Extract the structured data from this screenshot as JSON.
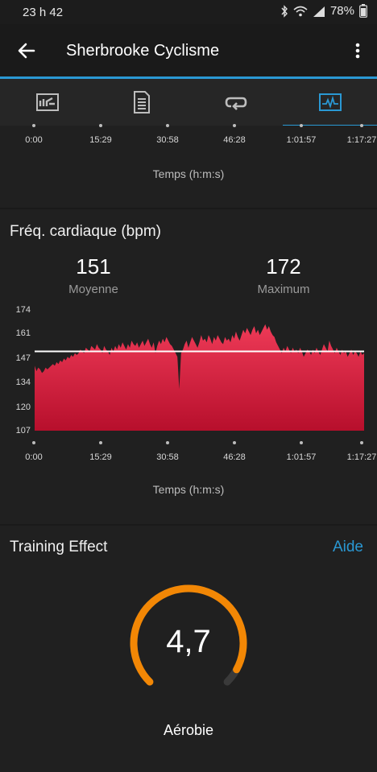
{
  "status_bar": {
    "time": "23 h 42",
    "battery": "78%"
  },
  "app_bar": {
    "title": "Sherbrooke Cyclisme"
  },
  "tabs": [
    {
      "name": "overview",
      "icon": "map-chart-icon",
      "active": false
    },
    {
      "name": "details",
      "icon": "document-list-icon",
      "active": false
    },
    {
      "name": "laps",
      "icon": "loop-icon",
      "active": false
    },
    {
      "name": "charts",
      "icon": "activity-chart-icon",
      "active": true
    }
  ],
  "top_card": {
    "time_ticks": [
      "0:00",
      "15:29",
      "30:58",
      "46:28",
      "1:01:57",
      "1:17:27"
    ],
    "xlabel": "Temps (h:m:s)"
  },
  "heart_rate": {
    "title": "Fréq. cardiaque (bpm)",
    "average_value": "151",
    "average_label": "Moyenne",
    "max_value": "172",
    "max_label": "Maximum",
    "xlabel": "Temps (h:m:s)"
  },
  "chart_data": {
    "type": "area",
    "title": "Fréq. cardiaque (bpm)",
    "xlabel": "Temps (h:m:s)",
    "ylabel": "",
    "ylim": [
      107,
      174
    ],
    "y_ticks": [
      "174",
      "161",
      "147",
      "134",
      "120",
      "107"
    ],
    "x_ticks": [
      "0:00",
      "15:29",
      "30:58",
      "46:28",
      "1:01:57",
      "1:17:27"
    ],
    "average_line": 151,
    "fill_color": "#d11a3c",
    "line_color": "#ffffff",
    "series": [
      {
        "values": [
          143,
          140,
          142,
          141,
          139,
          140,
          142,
          141,
          142,
          143,
          144,
          143,
          145,
          144,
          146,
          145,
          147,
          146,
          148,
          147,
          149,
          148,
          150,
          149,
          150,
          152,
          151,
          150,
          153,
          152,
          151,
          154,
          153,
          152,
          155,
          153,
          152,
          150,
          154,
          152,
          151,
          149,
          153,
          151,
          154,
          152,
          155,
          153,
          156,
          154,
          152,
          155,
          153,
          157,
          155,
          154,
          156,
          153,
          155,
          157,
          154,
          156,
          158,
          155,
          153,
          156,
          150,
          154,
          157,
          155,
          158,
          156,
          159,
          157,
          155,
          154,
          152,
          150,
          148,
          130,
          150,
          152,
          155,
          157,
          153,
          156,
          159,
          157,
          155,
          153,
          156,
          160,
          157,
          158,
          156,
          160,
          158,
          155,
          159,
          157,
          160,
          158,
          156,
          155,
          159,
          157,
          158,
          156,
          160,
          158,
          162,
          159,
          157,
          160,
          163,
          161,
          164,
          162,
          160,
          163,
          165,
          161,
          163,
          160,
          162,
          164,
          166,
          163,
          165,
          162,
          160,
          159,
          156,
          154,
          152,
          150,
          153,
          151,
          154,
          152,
          150,
          153,
          151,
          152,
          150,
          153,
          151,
          148,
          150,
          152,
          151,
          149,
          152,
          150,
          153,
          151,
          149,
          152,
          155,
          153,
          151,
          157,
          154,
          152,
          150,
          153,
          151,
          149,
          152,
          150,
          151,
          148,
          150,
          152,
          149,
          151,
          150,
          148,
          151,
          149,
          150
        ]
      }
    ]
  },
  "training_effect": {
    "title": "Training Effect",
    "help_link": "Aide",
    "value": "4,7",
    "value_num": 4.7,
    "max": 5,
    "label": "Aérobie",
    "gauge_color": "#f28705",
    "track_color": "#3a3a3a"
  }
}
